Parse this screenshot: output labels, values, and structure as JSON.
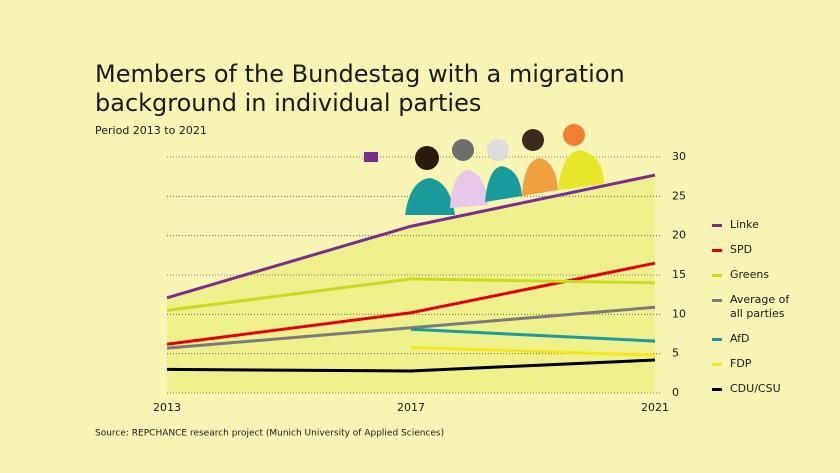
{
  "chart_data": {
    "type": "line",
    "title_lines": [
      "Members of the Bundestag with a migration",
      "background in individual parties"
    ],
    "subtitle": "Period 2013 to 2021",
    "source": "Source: REPCHANCE research project (Munich University of Applied Sciences)",
    "x": [
      2013,
      2017,
      2021
    ],
    "xlim": [
      2013,
      2021
    ],
    "xticks": [
      2013,
      2017,
      2021
    ],
    "ylim": [
      0,
      30
    ],
    "yticks": [
      0,
      5,
      10,
      15,
      20,
      25,
      30
    ],
    "grid": true,
    "area_fill": "#eef08c",
    "series": [
      {
        "name": "Linke",
        "color": "#7b2d8e",
        "values": [
          12.1,
          21.2,
          27.7
        ]
      },
      {
        "name": "SPD",
        "color": "#e3000f",
        "values": [
          6.2,
          10.2,
          16.5
        ]
      },
      {
        "name": "Greens",
        "color": "#c8dc1e",
        "values": [
          10.5,
          14.5,
          14.0
        ]
      },
      {
        "name": "Average of all parties",
        "color": "#7a7a7a",
        "values": [
          5.7,
          8.3,
          10.9
        ]
      },
      {
        "name": "AfD",
        "color": "#1a9a9a",
        "values": [
          null,
          8.1,
          6.6
        ]
      },
      {
        "name": "FDP",
        "color": "#f5e61e",
        "values": [
          null,
          5.8,
          4.8
        ]
      },
      {
        "name": "CDU/CSU",
        "color": "#000000",
        "values": [
          3.0,
          2.8,
          4.2
        ]
      }
    ]
  }
}
